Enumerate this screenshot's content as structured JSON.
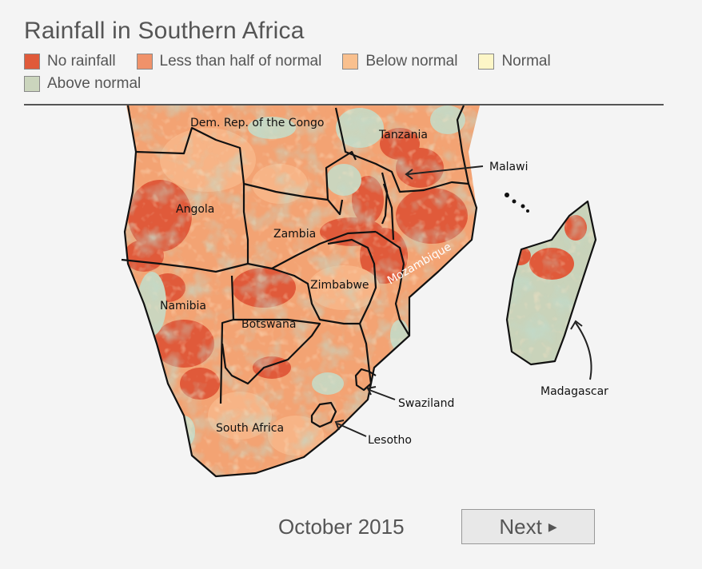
{
  "title": "Rainfall in Southern Africa",
  "legend": [
    {
      "label": "No rainfall",
      "color": "#e05a3a"
    },
    {
      "label": "Less than half of normal",
      "color": "#f0926a"
    },
    {
      "label": "Below normal",
      "color": "#f9c08e"
    },
    {
      "label": "Normal",
      "color": "#fdf6c7"
    },
    {
      "label": "Above normal",
      "color": "#cbd5bd"
    }
  ],
  "map": {
    "country_labels": {
      "drc": "Dem. Rep. of the Congo",
      "tanzania": "Tanzania",
      "angola": "Angola",
      "zambia": "Zambia",
      "malawi": "Malawi",
      "mozambique": "Mozambique",
      "zimbabwe": "Zimbabwe",
      "namibia": "Namibia",
      "botswana": "Botswana",
      "south_africa": "South Africa",
      "swaziland": "Swaziland",
      "lesotho": "Lesotho",
      "madagascar": "Madagascar"
    }
  },
  "footer": {
    "date": "October 2015",
    "next_label": "Next",
    "next_icon": "play-arrow-icon"
  }
}
